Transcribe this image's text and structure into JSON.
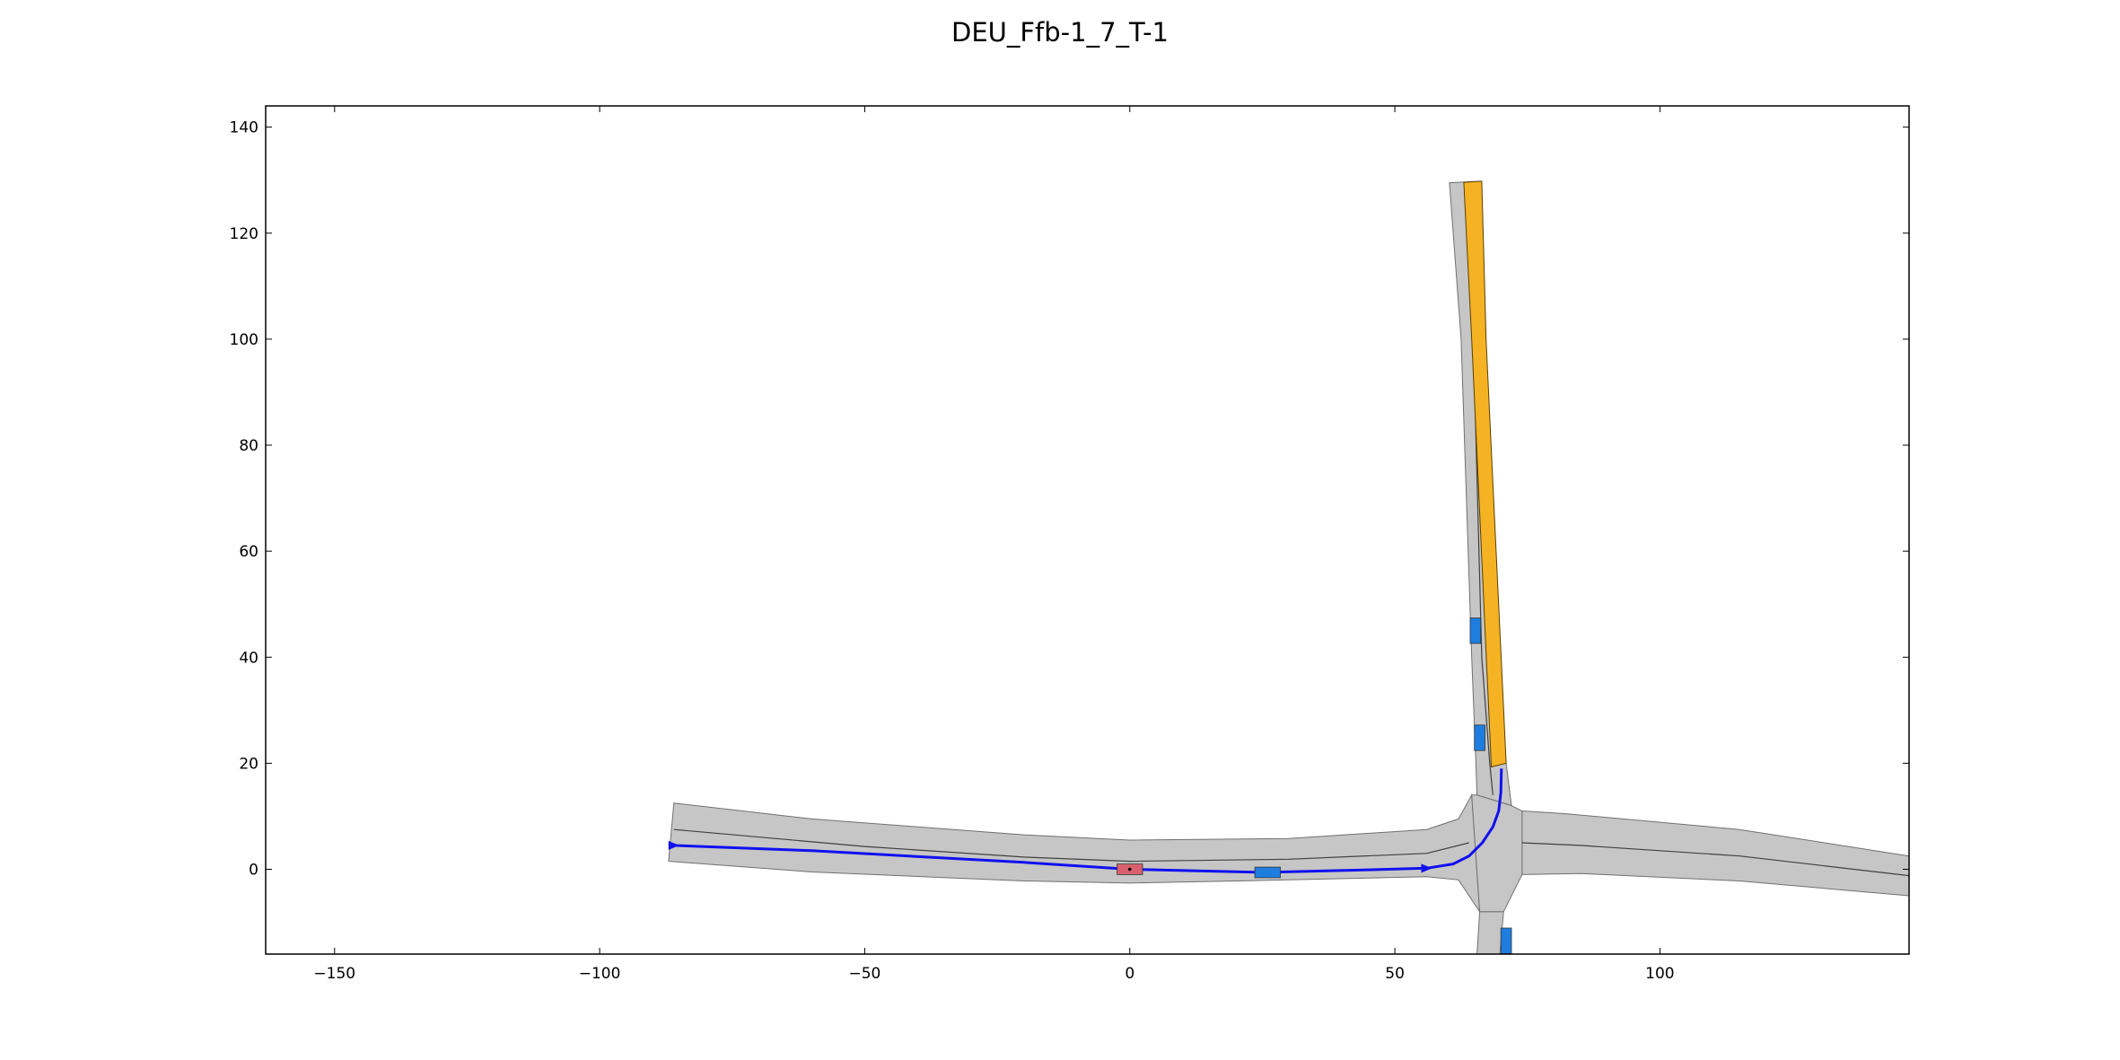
{
  "chart_data": {
    "type": "scatter",
    "title": "DEU_Ffb-1_7_T-1",
    "xlabel": "",
    "ylabel": "",
    "xlim": [
      -163,
      147
    ],
    "ylim": [
      -16,
      144
    ],
    "x_ticks": [
      -150,
      -100,
      -50,
      0,
      50,
      100
    ],
    "y_ticks": [
      0,
      20,
      40,
      60,
      80,
      100,
      120,
      140
    ],
    "x_tick_labels": [
      "−150",
      "−100",
      "−50",
      "0",
      "50",
      "100"
    ],
    "y_tick_labels": [
      "0",
      "20",
      "40",
      "60",
      "80",
      "100",
      "120",
      "140"
    ],
    "grid": false,
    "legend": "none",
    "colors": {
      "road": "#c6c6c6",
      "road_edge": "#707070",
      "lane_line": "#404040",
      "goal_region": "#f5b324",
      "ego_vehicle": "#d9606e",
      "other_vehicle": "#1e7ee0",
      "planned_route": "#1010f0"
    },
    "lanelets": [
      {
        "name": "west-road",
        "left": [
          [
            -86,
            12.5
          ],
          [
            -60,
            9.5
          ],
          [
            -20,
            6.5
          ],
          [
            0,
            5.5
          ],
          [
            30,
            5.8
          ],
          [
            56,
            7.5
          ],
          [
            62,
            9.5
          ],
          [
            64.5,
            14
          ]
        ],
        "right": [
          [
            -87,
            1.5
          ],
          [
            -60,
            -0.5
          ],
          [
            -20,
            -2.2
          ],
          [
            0,
            -2.6
          ],
          [
            30,
            -2.0
          ],
          [
            56,
            -1.4
          ],
          [
            62,
            -2.0
          ],
          [
            66,
            -8
          ]
        ]
      },
      {
        "name": "east-road",
        "left": [
          [
            74,
            11
          ],
          [
            82,
            10.5
          ],
          [
            115,
            7.5
          ],
          [
            147,
            2.5
          ]
        ],
        "right": [
          [
            74,
            -1
          ],
          [
            85,
            -0.8
          ],
          [
            115,
            -2.2
          ],
          [
            147,
            -5.0
          ]
        ]
      },
      {
        "name": "north-road",
        "left": [
          [
            60.3,
            129.5
          ],
          [
            62.5,
            100
          ],
          [
            64.5,
            40
          ],
          [
            65.3,
            20
          ],
          [
            65.5,
            14
          ]
        ],
        "right": [
          [
            66.2,
            129.8
          ],
          [
            67.0,
            100
          ],
          [
            68.8,
            40
          ],
          [
            71.0,
            20
          ],
          [
            72,
            12
          ]
        ]
      },
      {
        "name": "south-road",
        "left": [
          [
            65.5,
            -16
          ],
          [
            66,
            -8
          ]
        ],
        "right": [
          [
            69.8,
            -16
          ],
          [
            70.5,
            -8
          ]
        ]
      },
      {
        "name": "junction-patch",
        "left": [
          [
            64.5,
            14
          ],
          [
            65.5,
            14
          ],
          [
            72,
            12
          ],
          [
            74,
            11
          ]
        ],
        "right": [
          [
            66,
            -8
          ],
          [
            70.5,
            -8
          ],
          [
            74,
            -1
          ]
        ]
      }
    ],
    "lane_markings": [
      [
        [
          -86,
          7.5
        ],
        [
          -50,
          4.3
        ],
        [
          -20,
          2.3
        ],
        [
          0,
          1.5
        ],
        [
          30,
          1.9
        ],
        [
          56,
          3.0
        ],
        [
          64,
          5.0
        ]
      ],
      [
        [
          74,
          5.0
        ],
        [
          85,
          4.5
        ],
        [
          115,
          2.5
        ],
        [
          147,
          -1.2
        ]
      ],
      [
        [
          63.2,
          129.6
        ],
        [
          64.8,
          100
        ],
        [
          66.4,
          40
        ],
        [
          67.9,
          20
        ],
        [
          68.5,
          14
        ]
      ]
    ],
    "goal_region": [
      [
        63.0,
        129.6
      ],
      [
        66.4,
        129.8
      ],
      [
        67.2,
        100
      ],
      [
        71.0,
        20.0
      ],
      [
        68.2,
        19.3
      ],
      [
        64.5,
        100
      ]
    ],
    "planned_route": [
      [
        -86,
        4.5
      ],
      [
        -60,
        3.5
      ],
      [
        -20,
        1.3
      ],
      [
        0,
        0
      ],
      [
        25,
        -0.6
      ],
      [
        45,
        -0.1
      ],
      [
        56,
        0.2
      ],
      [
        61,
        1.0
      ],
      [
        64,
        2.5
      ],
      [
        66.5,
        5.0
      ],
      [
        68.5,
        8.0
      ],
      [
        69.6,
        11.0
      ],
      [
        70.0,
        14.5
      ],
      [
        70.1,
        19.0
      ]
    ],
    "route_markers": [
      {
        "x": -86,
        "y": 4.5,
        "direction": "east"
      },
      {
        "x": 56,
        "y": 0.2,
        "direction": "east"
      }
    ],
    "ego_vehicle": {
      "x": 0,
      "y": 0,
      "length": 4.8,
      "width": 2.0,
      "heading_deg": 0
    },
    "other_vehicles": [
      {
        "x": 26,
        "y": -0.6,
        "length": 4.8,
        "width": 2.0,
        "heading_deg": 0
      },
      {
        "x": 65.2,
        "y": 45,
        "length": 4.8,
        "width": 2.0,
        "heading_deg": 90
      },
      {
        "x": 66.0,
        "y": 24.8,
        "length": 4.8,
        "width": 2.0,
        "heading_deg": 90
      },
      {
        "x": 71.0,
        "y": -13.5,
        "length": 4.8,
        "width": 2.0,
        "heading_deg": 90
      }
    ]
  }
}
